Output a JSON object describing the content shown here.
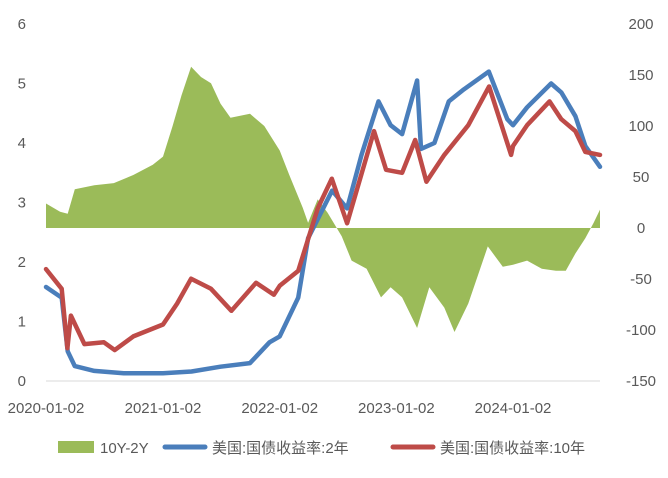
{
  "chart_data": {
    "type": "line",
    "title": "",
    "x_ticks": [
      "2020-01-02",
      "2021-01-02",
      "2022-01-02",
      "2023-01-02",
      "2024-01-02"
    ],
    "x_range": [
      "2020-01-02",
      "2024-09-30"
    ],
    "y_left": {
      "min": 0,
      "max": 6,
      "ticks": [
        "0",
        "1",
        "2",
        "3",
        "4",
        "5",
        "6"
      ]
    },
    "y_right": {
      "min": -150,
      "max": 200,
      "ticks": [
        "-150",
        "-100",
        "-50",
        "0",
        "50",
        "100",
        "150",
        "200"
      ]
    },
    "grid": false,
    "legend_position": "bottom",
    "series": [
      {
        "name": "10Y-2Y",
        "kind": "area",
        "axis": "right",
        "color": "#9bbb59",
        "points": [
          [
            "2020-01-02",
            24
          ],
          [
            "2020-02-15",
            16
          ],
          [
            "2020-03-10",
            14
          ],
          [
            "2020-04-01",
            38
          ],
          [
            "2020-06-01",
            42
          ],
          [
            "2020-08-01",
            44
          ],
          [
            "2020-10-01",
            52
          ],
          [
            "2020-12-01",
            62
          ],
          [
            "2021-01-02",
            70
          ],
          [
            "2021-02-01",
            100
          ],
          [
            "2021-03-01",
            130
          ],
          [
            "2021-03-31",
            158
          ],
          [
            "2021-05-01",
            148
          ],
          [
            "2021-06-01",
            142
          ],
          [
            "2021-07-01",
            122
          ],
          [
            "2021-08-01",
            108
          ],
          [
            "2021-10-01",
            112
          ],
          [
            "2021-11-15",
            100
          ],
          [
            "2022-01-02",
            76
          ],
          [
            "2022-02-01",
            52
          ],
          [
            "2022-03-15",
            20
          ],
          [
            "2022-04-01",
            5
          ],
          [
            "2022-05-01",
            28
          ],
          [
            "2022-06-01",
            15
          ],
          [
            "2022-07-15",
            -8
          ],
          [
            "2022-08-15",
            -32
          ],
          [
            "2022-10-01",
            -40
          ],
          [
            "2022-11-15",
            -68
          ],
          [
            "2022-12-15",
            -58
          ],
          [
            "2023-01-20",
            -68
          ],
          [
            "2023-03-08",
            -98
          ],
          [
            "2023-04-15",
            -58
          ],
          [
            "2023-06-01",
            -78
          ],
          [
            "2023-07-03",
            -102
          ],
          [
            "2023-08-15",
            -74
          ],
          [
            "2023-10-15",
            -18
          ],
          [
            "2023-12-01",
            -38
          ],
          [
            "2024-01-02",
            -36
          ],
          [
            "2024-02-15",
            -32
          ],
          [
            "2024-04-01",
            -40
          ],
          [
            "2024-05-15",
            -42
          ],
          [
            "2024-06-15",
            -42
          ],
          [
            "2024-07-15",
            -25
          ],
          [
            "2024-08-15",
            -10
          ],
          [
            "2024-09-10",
            5
          ],
          [
            "2024-09-30",
            18
          ]
        ]
      },
      {
        "name": "美国:国债收益率:2年",
        "kind": "line",
        "axis": "left",
        "color": "#4a7ebb",
        "points": [
          [
            "2020-01-02",
            1.58
          ],
          [
            "2020-02-20",
            1.4
          ],
          [
            "2020-03-10",
            0.5
          ],
          [
            "2020-04-01",
            0.25
          ],
          [
            "2020-06-01",
            0.17
          ],
          [
            "2020-09-01",
            0.13
          ],
          [
            "2021-01-02",
            0.13
          ],
          [
            "2021-04-01",
            0.16
          ],
          [
            "2021-07-01",
            0.24
          ],
          [
            "2021-10-01",
            0.3
          ],
          [
            "2021-12-01",
            0.65
          ],
          [
            "2022-01-02",
            0.75
          ],
          [
            "2022-03-01",
            1.4
          ],
          [
            "2022-04-01",
            2.4
          ],
          [
            "2022-06-15",
            3.2
          ],
          [
            "2022-08-01",
            2.9
          ],
          [
            "2022-09-15",
            3.8
          ],
          [
            "2022-11-07",
            4.7
          ],
          [
            "2022-12-15",
            4.3
          ],
          [
            "2023-01-20",
            4.15
          ],
          [
            "2023-03-08",
            5.05
          ],
          [
            "2023-03-20",
            3.9
          ],
          [
            "2023-05-01",
            4.0
          ],
          [
            "2023-06-15",
            4.7
          ],
          [
            "2023-08-01",
            4.9
          ],
          [
            "2023-10-18",
            5.2
          ],
          [
            "2023-12-15",
            4.4
          ],
          [
            "2024-01-02",
            4.3
          ],
          [
            "2024-02-15",
            4.6
          ],
          [
            "2024-04-30",
            5.0
          ],
          [
            "2024-06-01",
            4.85
          ],
          [
            "2024-07-15",
            4.45
          ],
          [
            "2024-08-15",
            3.95
          ],
          [
            "2024-09-30",
            3.6
          ]
        ]
      },
      {
        "name": "美国:国债收益率:10年",
        "kind": "line",
        "axis": "left",
        "color": "#be4b48",
        "points": [
          [
            "2020-01-02",
            1.88
          ],
          [
            "2020-02-20",
            1.55
          ],
          [
            "2020-03-09",
            0.55
          ],
          [
            "2020-03-20",
            1.1
          ],
          [
            "2020-05-01",
            0.62
          ],
          [
            "2020-07-01",
            0.65
          ],
          [
            "2020-08-04",
            0.52
          ],
          [
            "2020-10-01",
            0.75
          ],
          [
            "2021-01-02",
            0.95
          ],
          [
            "2021-02-15",
            1.3
          ],
          [
            "2021-03-31",
            1.72
          ],
          [
            "2021-06-01",
            1.55
          ],
          [
            "2021-08-04",
            1.18
          ],
          [
            "2021-10-20",
            1.65
          ],
          [
            "2021-12-15",
            1.45
          ],
          [
            "2022-01-02",
            1.6
          ],
          [
            "2022-03-01",
            1.85
          ],
          [
            "2022-05-01",
            2.9
          ],
          [
            "2022-06-14",
            3.4
          ],
          [
            "2022-08-01",
            2.65
          ],
          [
            "2022-10-24",
            4.2
          ],
          [
            "2022-12-01",
            3.55
          ],
          [
            "2023-01-20",
            3.5
          ],
          [
            "2023-03-02",
            4.05
          ],
          [
            "2023-04-06",
            3.35
          ],
          [
            "2023-06-01",
            3.8
          ],
          [
            "2023-08-15",
            4.3
          ],
          [
            "2023-10-19",
            4.95
          ],
          [
            "2023-12-27",
            3.8
          ],
          [
            "2024-01-02",
            3.95
          ],
          [
            "2024-02-15",
            4.3
          ],
          [
            "2024-04-25",
            4.7
          ],
          [
            "2024-06-01",
            4.4
          ],
          [
            "2024-07-15",
            4.2
          ],
          [
            "2024-08-15",
            3.85
          ],
          [
            "2024-09-30",
            3.8
          ]
        ]
      }
    ]
  }
}
